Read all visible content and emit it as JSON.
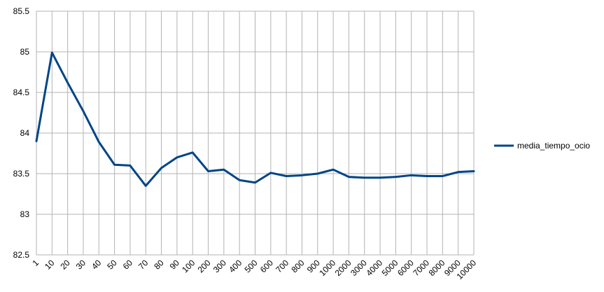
{
  "chart_data": {
    "type": "line",
    "categories": [
      "1",
      "10",
      "20",
      "30",
      "40",
      "50",
      "60",
      "70",
      "80",
      "90",
      "100",
      "200",
      "300",
      "400",
      "500",
      "600",
      "700",
      "800",
      "900",
      "1000",
      "2000",
      "3000",
      "4000",
      "5000",
      "6000",
      "7000",
      "8000",
      "9000",
      "10000"
    ],
    "series": [
      {
        "name": "media_tiempo_ocio",
        "color": "#004586",
        "values": [
          83.9,
          84.99,
          84.62,
          84.27,
          83.89,
          83.61,
          83.6,
          83.35,
          83.57,
          83.7,
          83.76,
          83.53,
          83.55,
          83.42,
          83.39,
          83.51,
          83.47,
          83.48,
          83.5,
          83.55,
          83.46,
          83.45,
          83.45,
          83.46,
          83.48,
          83.47,
          83.47,
          83.52,
          83.53
        ]
      }
    ],
    "ylim": [
      82.5,
      85.5
    ],
    "yticks": [
      "82.5",
      "83",
      "83.5",
      "84",
      "84.5",
      "85",
      "85.5"
    ],
    "grid": "both",
    "legend_position": "right"
  }
}
